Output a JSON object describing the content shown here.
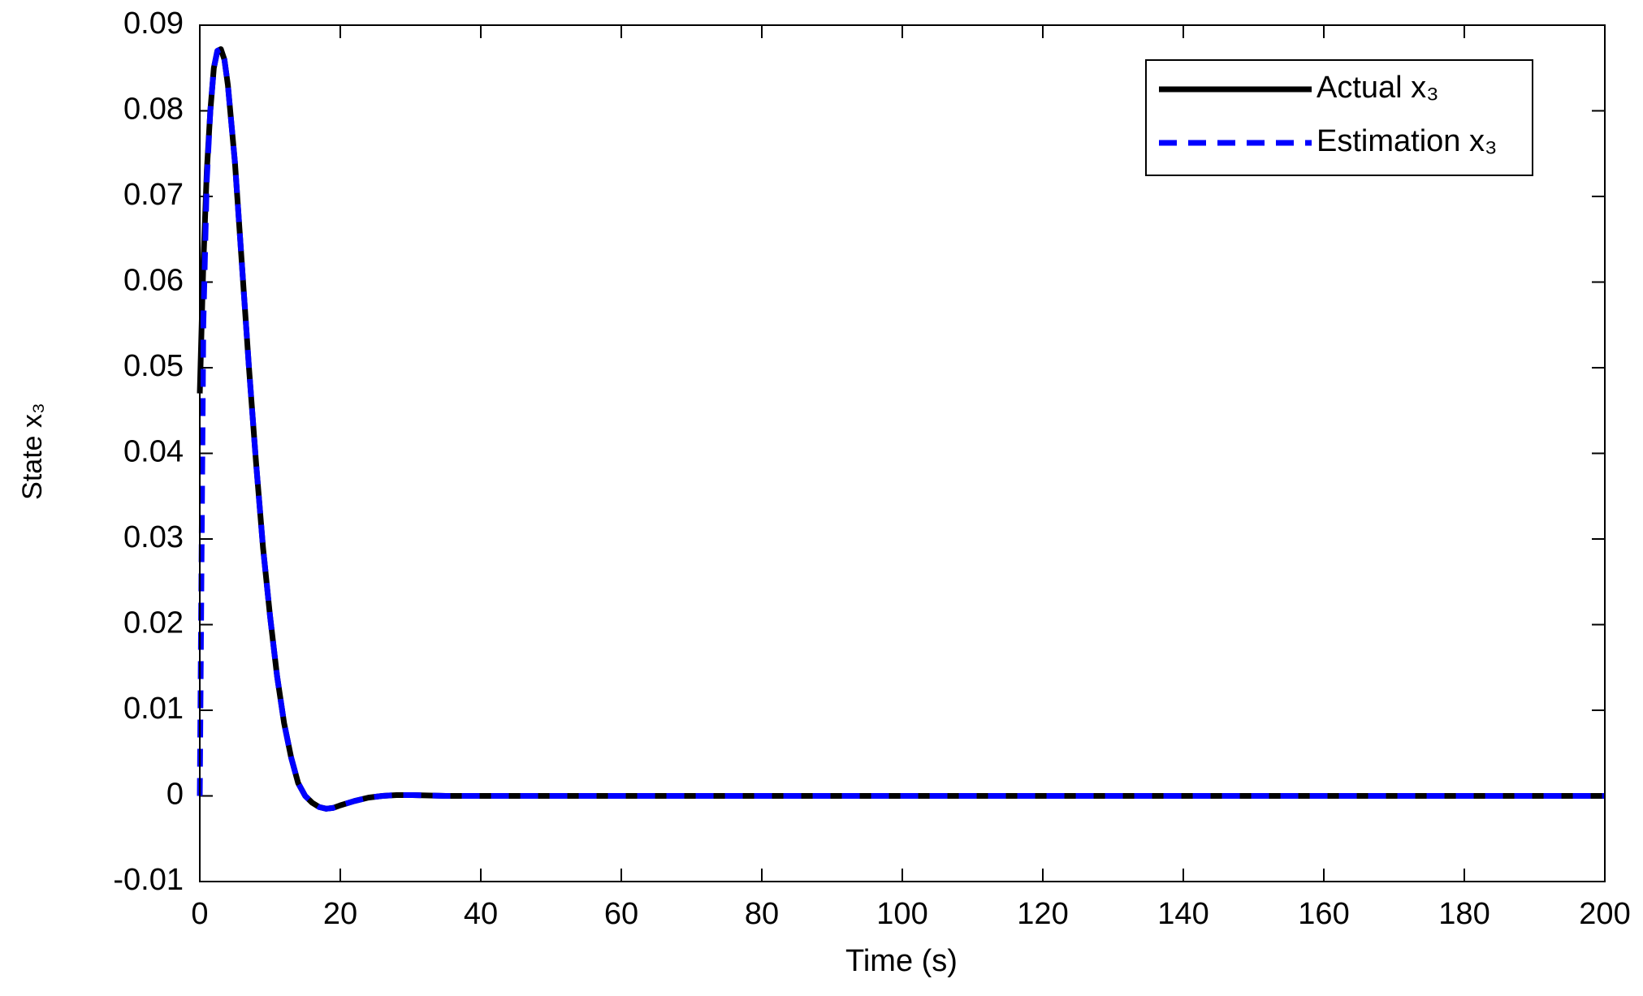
{
  "chart_data": {
    "type": "line",
    "x_label": "Time (s)",
    "y_label": "State x₃",
    "x": [
      0,
      0.5,
      1,
      1.5,
      2,
      2.5,
      3,
      3.5,
      4,
      5,
      6,
      7,
      8,
      9,
      10,
      11,
      12,
      13,
      14,
      15,
      16,
      17,
      18,
      19,
      20,
      22,
      24,
      26,
      28,
      30,
      35,
      40,
      60,
      80,
      100,
      120,
      140,
      160,
      180,
      200
    ],
    "series": [
      {
        "name": "Actual x₃",
        "color": "#000000",
        "dash": "solid",
        "values": [
          0.047,
          0.062,
          0.073,
          0.08,
          0.085,
          0.087,
          0.0872,
          0.086,
          0.083,
          0.074,
          0.062,
          0.05,
          0.039,
          0.029,
          0.021,
          0.014,
          0.0085,
          0.0045,
          0.0015,
          0,
          -0.0008,
          -0.0013,
          -0.0015,
          -0.0014,
          -0.0011,
          -0.0006,
          -0.0002,
          0,
          0.0001,
          0.0001,
          0,
          0,
          0,
          0,
          0,
          0,
          0,
          0,
          0,
          0
        ]
      },
      {
        "name": "Estimation x₃",
        "color": "#0000ff",
        "dash": "dashed",
        "values": [
          0,
          0.055,
          0.072,
          0.08,
          0.085,
          0.087,
          0.0872,
          0.086,
          0.083,
          0.074,
          0.062,
          0.05,
          0.039,
          0.029,
          0.021,
          0.014,
          0.0085,
          0.0045,
          0.0015,
          0,
          -0.0008,
          -0.0013,
          -0.0015,
          -0.0014,
          -0.0011,
          -0.0006,
          -0.0002,
          0,
          0.0001,
          0.0001,
          0,
          0,
          0,
          0,
          0,
          0,
          0,
          0,
          0,
          0
        ]
      }
    ],
    "xlim": [
      0,
      200
    ],
    "xticks": [
      0,
      20,
      40,
      60,
      80,
      100,
      120,
      140,
      160,
      180,
      200
    ],
    "ylim": [
      -0.01,
      0.09
    ],
    "yticks": [
      -0.01,
      0,
      0.01,
      0.02,
      0.03,
      0.04,
      0.05,
      0.06,
      0.07,
      0.08,
      0.09
    ],
    "grid": false,
    "legend": "upper right"
  }
}
